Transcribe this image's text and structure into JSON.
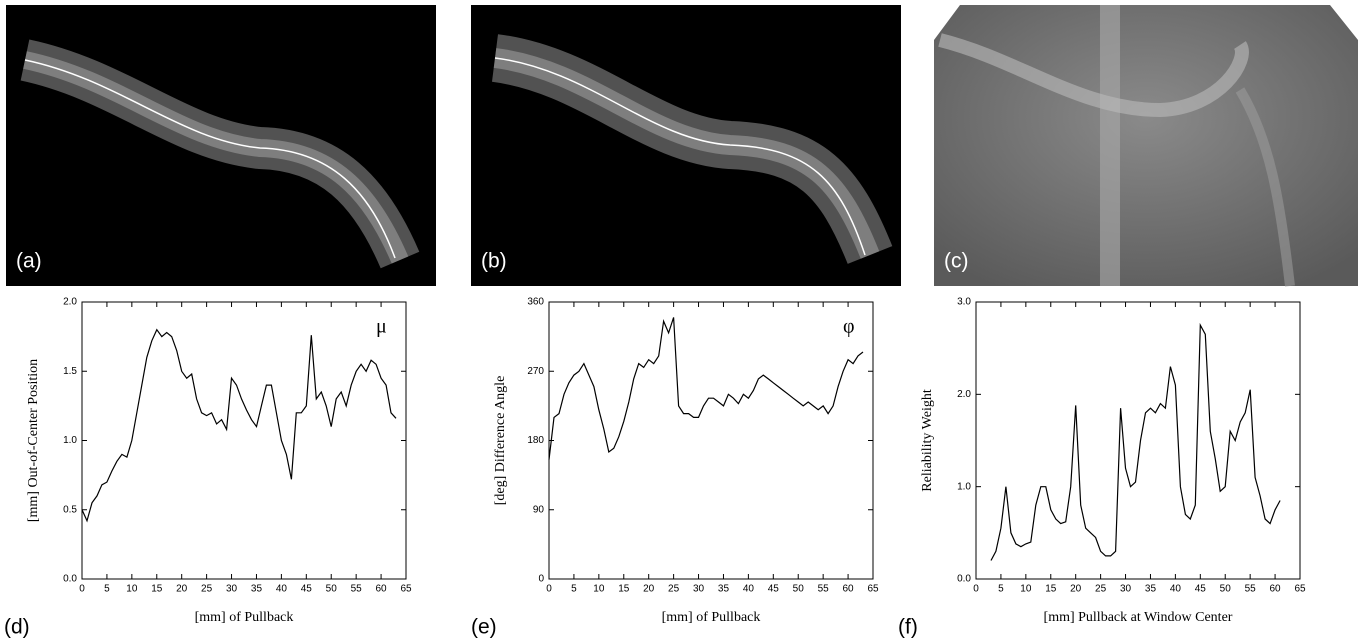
{
  "images": [
    {
      "label": "(a)"
    },
    {
      "label": "(b)"
    },
    {
      "label": "(c)"
    }
  ],
  "chart_data": [
    {
      "type": "line",
      "panel_label": "(d)",
      "x_label": "[mm] of Pullback",
      "y_label": "[mm] Out-of-Center Position",
      "annotation": "μ",
      "color": "#000000",
      "x": [
        0,
        1,
        2,
        3,
        4,
        5,
        6,
        7,
        8,
        9,
        10,
        11,
        12,
        13,
        14,
        15,
        16,
        17,
        18,
        19,
        20,
        21,
        22,
        23,
        24,
        25,
        26,
        27,
        28,
        29,
        30,
        31,
        32,
        33,
        34,
        35,
        36,
        37,
        38,
        39,
        40,
        41,
        42,
        43,
        44,
        45,
        46,
        47,
        48,
        49,
        50,
        51,
        52,
        53,
        54,
        55,
        56,
        57,
        58,
        59,
        60,
        61,
        62,
        63
      ],
      "values": [
        0.5,
        0.42,
        0.55,
        0.6,
        0.68,
        0.7,
        0.78,
        0.85,
        0.9,
        0.88,
        1.0,
        1.2,
        1.4,
        1.6,
        1.72,
        1.8,
        1.75,
        1.78,
        1.75,
        1.65,
        1.5,
        1.45,
        1.48,
        1.3,
        1.2,
        1.18,
        1.2,
        1.12,
        1.15,
        1.08,
        1.45,
        1.4,
        1.3,
        1.22,
        1.15,
        1.1,
        1.25,
        1.4,
        1.4,
        1.2,
        1.0,
        0.9,
        0.72,
        1.2,
        1.2,
        1.25,
        1.76,
        1.3,
        1.35,
        1.25,
        1.1,
        1.3,
        1.35,
        1.25,
        1.4,
        1.5,
        1.55,
        1.5,
        1.58,
        1.55,
        1.45,
        1.4,
        1.2,
        1.16
      ],
      "xlim": [
        0,
        65
      ],
      "xticks": [
        0,
        5,
        10,
        15,
        20,
        25,
        30,
        35,
        40,
        45,
        50,
        55,
        60,
        65
      ],
      "ylim": [
        0,
        2
      ],
      "yticks": [
        {
          "value": 0,
          "label": "0.0"
        },
        {
          "value": 0.5,
          "label": "0.5"
        },
        {
          "value": 1,
          "label": "1.0"
        },
        {
          "value": 1.5,
          "label": "1.5"
        },
        {
          "value": 2,
          "label": "2.0"
        }
      ]
    },
    {
      "type": "line",
      "panel_label": "(e)",
      "x_label": "[mm] of Pullback",
      "y_label": "[deg] Difference Angle",
      "annotation": "φ",
      "color": "#000000",
      "x": [
        0,
        1,
        2,
        3,
        4,
        5,
        6,
        7,
        8,
        9,
        10,
        11,
        12,
        13,
        14,
        15,
        16,
        17,
        18,
        19,
        20,
        21,
        22,
        23,
        24,
        25,
        26,
        27,
        28,
        29,
        30,
        31,
        32,
        33,
        34,
        35,
        36,
        37,
        38,
        39,
        40,
        41,
        42,
        43,
        44,
        45,
        46,
        47,
        48,
        49,
        50,
        51,
        52,
        53,
        54,
        55,
        56,
        57,
        58,
        59,
        60,
        61,
        62,
        63
      ],
      "values": [
        155,
        210,
        215,
        240,
        255,
        265,
        270,
        280,
        265,
        250,
        220,
        195,
        165,
        170,
        185,
        205,
        230,
        260,
        280,
        275,
        285,
        280,
        290,
        335,
        320,
        340,
        225,
        215,
        215,
        210,
        210,
        225,
        235,
        235,
        230,
        225,
        240,
        235,
        228,
        240,
        235,
        245,
        260,
        265,
        260,
        255,
        250,
        245,
        240,
        235,
        230,
        225,
        230,
        225,
        220,
        225,
        215,
        225,
        250,
        270,
        285,
        280,
        290,
        295
      ],
      "xlim": [
        0,
        65
      ],
      "xticks": [
        0,
        5,
        10,
        15,
        20,
        25,
        30,
        35,
        40,
        45,
        50,
        55,
        60,
        65
      ],
      "ylim": [
        0,
        360
      ],
      "yticks": [
        0,
        90,
        180,
        270,
        360
      ]
    },
    {
      "type": "line",
      "panel_label": "(f)",
      "x_label": "[mm] Pullback at Window Center",
      "y_label": "Reliability Weight",
      "color": "#000000",
      "x": [
        3,
        4,
        5,
        6,
        7,
        8,
        9,
        10,
        11,
        12,
        13,
        14,
        15,
        16,
        17,
        18,
        19,
        20,
        21,
        22,
        23,
        24,
        25,
        26,
        27,
        28,
        29,
        30,
        31,
        32,
        33,
        34,
        35,
        36,
        37,
        38,
        39,
        40,
        41,
        42,
        43,
        44,
        45,
        46,
        47,
        48,
        49,
        50,
        51,
        52,
        53,
        54,
        55,
        56,
        57,
        58,
        59,
        60,
        61
      ],
      "values": [
        0.2,
        0.3,
        0.55,
        1.0,
        0.5,
        0.38,
        0.35,
        0.38,
        0.4,
        0.8,
        1.0,
        1.0,
        0.75,
        0.65,
        0.6,
        0.62,
        1.0,
        1.88,
        0.8,
        0.55,
        0.5,
        0.45,
        0.3,
        0.25,
        0.25,
        0.3,
        1.85,
        1.2,
        1.0,
        1.05,
        1.5,
        1.8,
        1.85,
        1.8,
        1.9,
        1.85,
        2.3,
        2.1,
        1.0,
        0.7,
        0.65,
        0.8,
        2.75,
        2.65,
        1.6,
        1.3,
        0.95,
        1.0,
        1.6,
        1.5,
        1.7,
        1.8,
        2.05,
        1.1,
        0.9,
        0.65,
        0.6,
        0.75,
        0.85
      ],
      "xlim": [
        0,
        65
      ],
      "xticks": [
        0,
        5,
        10,
        15,
        20,
        25,
        30,
        35,
        40,
        45,
        50,
        55,
        60,
        65
      ],
      "ylim": [
        0,
        3
      ],
      "yticks": [
        {
          "value": 0,
          "label": "0.0"
        },
        {
          "value": 1,
          "label": "1.0"
        },
        {
          "value": 2,
          "label": "2.0"
        },
        {
          "value": 3,
          "label": "3.0"
        }
      ]
    }
  ]
}
